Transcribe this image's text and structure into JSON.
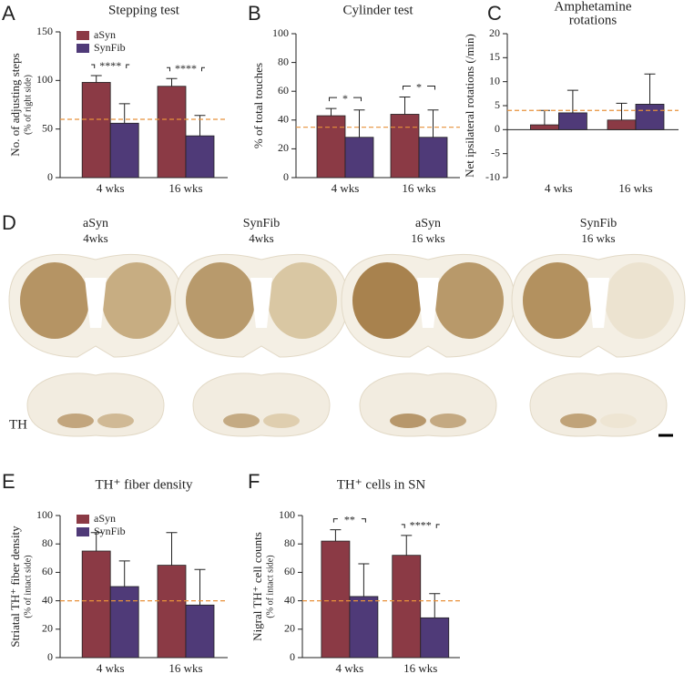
{
  "chart_data": [
    {
      "type": "bar",
      "panel": "A",
      "title": "Stepping test",
      "ylabel": "No. of adjusting steps",
      "ylabel_sub": "(% of right side)",
      "categories": [
        "4 wks",
        "16 wks"
      ],
      "series": [
        {
          "name": "aSyn",
          "color": "#8b3a45",
          "values": [
            98,
            94
          ],
          "errors": [
            7,
            8
          ]
        },
        {
          "name": "SynFib",
          "color": "#4f3a78",
          "values": [
            56,
            43
          ],
          "errors": [
            20,
            21
          ]
        }
      ],
      "ylim": [
        0,
        150
      ],
      "yticks": [
        0,
        50,
        100,
        150
      ],
      "reference": 60,
      "reference_color": "#e8913a",
      "significance": [
        "****",
        "****"
      ],
      "legend": true
    },
    {
      "type": "bar",
      "panel": "B",
      "title": "Cylinder test",
      "ylabel": "% of total touches",
      "categories": [
        "4 wks",
        "16 wks"
      ],
      "series": [
        {
          "name": "aSyn",
          "color": "#8b3a45",
          "values": [
            43,
            44
          ],
          "errors": [
            5,
            12
          ]
        },
        {
          "name": "SynFib",
          "color": "#4f3a78",
          "values": [
            28,
            28
          ],
          "errors": [
            19,
            19
          ]
        }
      ],
      "ylim": [
        0,
        100
      ],
      "yticks": [
        0,
        20,
        40,
        60,
        80,
        100
      ],
      "reference": 35,
      "reference_color": "#e8913a",
      "significance": [
        "*",
        "*"
      ],
      "legend": false
    },
    {
      "type": "bar",
      "panel": "C",
      "title": [
        "Amphetamine",
        "rotations"
      ],
      "ylabel": "Net ipsilateral rotations (/min)",
      "categories": [
        "4 wks",
        "16 wks"
      ],
      "series": [
        {
          "name": "aSyn",
          "color": "#8b3a45",
          "values": [
            1,
            2
          ],
          "errors": [
            3,
            3.5
          ]
        },
        {
          "name": "SynFib",
          "color": "#4f3a78",
          "values": [
            3.5,
            5.3
          ],
          "errors": [
            4.7,
            6.3
          ]
        }
      ],
      "ylim": [
        -10,
        20
      ],
      "yticks": [
        -10,
        -5,
        0,
        5,
        10,
        15,
        20
      ],
      "reference": 4,
      "reference_color": "#e8913a",
      "legend": false
    },
    {
      "type": "bar",
      "panel": "E",
      "title": "TH⁺ fiber density",
      "ylabel": "Striatal TH⁺ fiber density",
      "ylabel_sub": "(% of intact side)",
      "categories": [
        "4 wks",
        "16 wks"
      ],
      "series": [
        {
          "name": "aSyn",
          "color": "#8b3a45",
          "values": [
            75,
            65
          ],
          "errors": [
            13,
            23
          ]
        },
        {
          "name": "SynFib",
          "color": "#4f3a78",
          "values": [
            50,
            37
          ],
          "errors": [
            18,
            25
          ]
        }
      ],
      "ylim": [
        0,
        100
      ],
      "yticks": [
        0,
        20,
        40,
        60,
        80,
        100
      ],
      "reference": 40,
      "reference_color": "#e8913a",
      "legend": true
    },
    {
      "type": "bar",
      "panel": "F",
      "title": "TH⁺ cells in SN",
      "ylabel": "Nigral TH⁺ cell counts",
      "ylabel_sub": "(% of intact side)",
      "categories": [
        "4 wks",
        "16 wks"
      ],
      "series": [
        {
          "name": "aSyn",
          "color": "#8b3a45",
          "values": [
            82,
            72
          ],
          "errors": [
            8,
            14
          ]
        },
        {
          "name": "SynFib",
          "color": "#4f3a78",
          "values": [
            43,
            28
          ],
          "errors": [
            23,
            17
          ]
        }
      ],
      "ylim": [
        0,
        100
      ],
      "yticks": [
        0,
        20,
        40,
        60,
        80,
        100
      ],
      "reference": 40,
      "reference_color": "#e8913a",
      "significance": [
        "**",
        "****"
      ],
      "legend": false
    }
  ],
  "histology": {
    "panel": "D",
    "stain": "TH",
    "sections": [
      {
        "label": "aSyn",
        "time": "4wks"
      },
      {
        "label": "SynFib",
        "time": "4wks"
      },
      {
        "label": "aSyn",
        "time": "16 wks"
      },
      {
        "label": "SynFib",
        "time": "16 wks"
      }
    ]
  }
}
